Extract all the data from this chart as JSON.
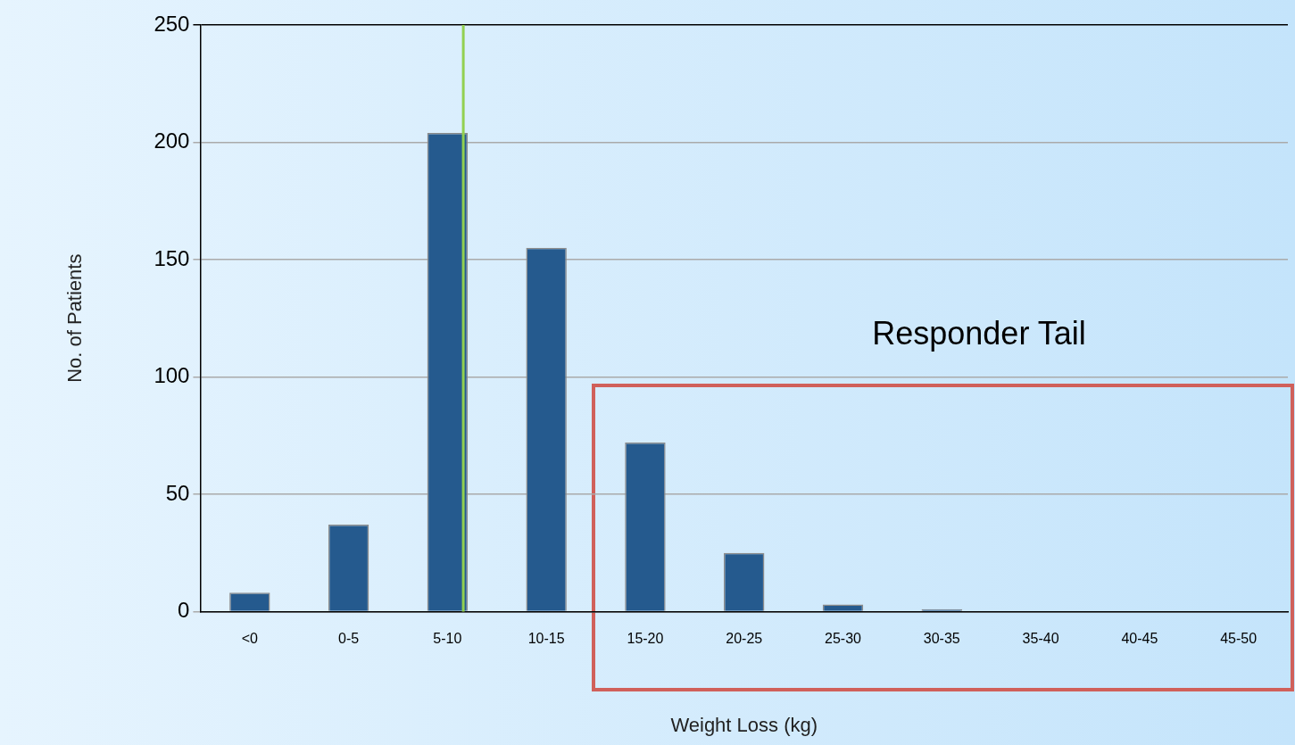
{
  "chart_data": {
    "type": "bar",
    "xlabel": "Weight Loss (kg)",
    "ylabel": "No. of Patients",
    "categories": [
      "<0",
      "0-5",
      "5-10",
      "10-15",
      "15-20",
      "20-25",
      "25-30",
      "30-35",
      "35-40",
      "40-45",
      "45-50"
    ],
    "values": [
      8,
      37,
      204,
      155,
      72,
      25,
      3,
      1,
      0,
      0,
      0
    ],
    "color": "#255a8e",
    "ylim": [
      0,
      250
    ],
    "yticks": [
      0,
      50,
      100,
      150,
      200,
      250
    ],
    "grid": "y",
    "ref_lines": [
      {
        "axis": "x",
        "value": "5-10",
        "color": "#92d050"
      }
    ],
    "annotations": [
      "Responder Tail"
    ]
  }
}
